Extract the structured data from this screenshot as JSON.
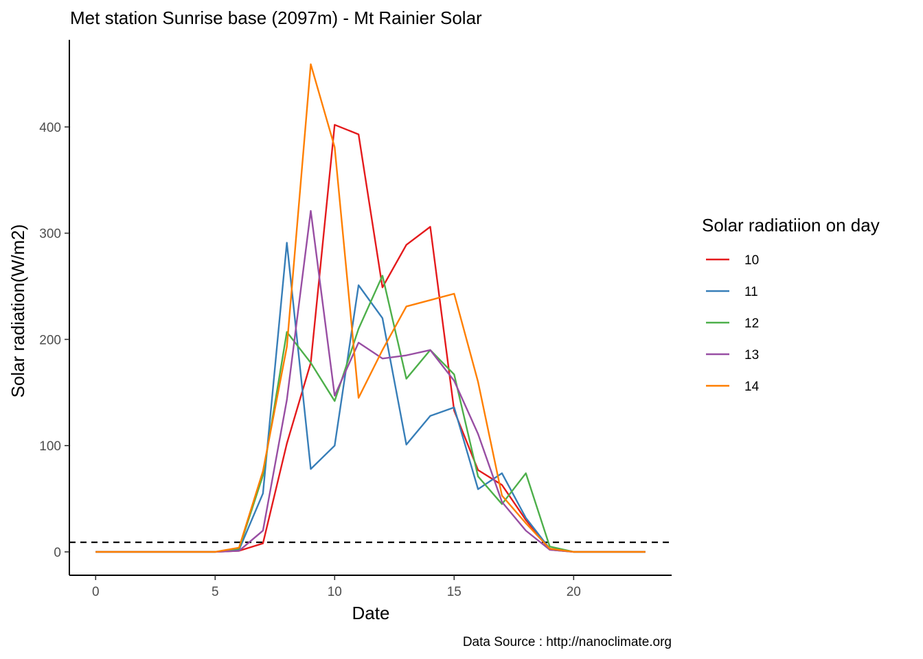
{
  "chart_data": {
    "type": "line",
    "title": "Met station Sunrise base (2097m) -  Mt Rainier  Solar",
    "xlabel": "Date",
    "ylabel": "Solar radiation(W/m2)",
    "caption": "Data Source : http://nanoclimate.org",
    "xlim": [
      -1.1,
      24.1
    ],
    "ylim": [
      -22,
      482
    ],
    "x_ticks": [
      0,
      5,
      10,
      15,
      20
    ],
    "y_ticks": [
      0,
      100,
      200,
      300,
      400
    ],
    "grid": false,
    "reference_line": {
      "y": 9,
      "style": "dashed",
      "color": "#000000"
    },
    "legend": {
      "title": "Solar radiatiion on day",
      "position": "right"
    },
    "x": [
      0,
      1,
      2,
      3,
      4,
      5,
      6,
      7,
      8,
      9,
      10,
      11,
      12,
      13,
      14,
      15,
      16,
      17,
      18,
      19,
      20,
      21,
      22,
      23
    ],
    "series": [
      {
        "name": "10",
        "color": "#e41a1c",
        "values": [
          0,
          0,
          0,
          0,
          0,
          0,
          1,
          8,
          102,
          178,
          402,
          393,
          249,
          289,
          306,
          133,
          77,
          63,
          30,
          2,
          0,
          0,
          0,
          0
        ]
      },
      {
        "name": "11",
        "color": "#377eb8",
        "values": [
          0,
          0,
          0,
          0,
          0,
          0,
          2,
          55,
          291,
          78,
          100,
          251,
          220,
          101,
          128,
          136,
          59,
          74,
          32,
          3,
          0,
          0,
          0,
          0
        ]
      },
      {
        "name": "12",
        "color": "#4daf4a",
        "values": [
          0,
          0,
          0,
          0,
          0,
          0,
          3,
          72,
          207,
          178,
          142,
          210,
          260,
          163,
          190,
          167,
          71,
          45,
          74,
          5,
          0,
          0,
          0,
          0
        ]
      },
      {
        "name": "13",
        "color": "#984ea3",
        "values": [
          0,
          0,
          0,
          0,
          0,
          0,
          1,
          20,
          143,
          321,
          147,
          197,
          182,
          185,
          190,
          161,
          111,
          47,
          20,
          2,
          0,
          0,
          0,
          0
        ]
      },
      {
        "name": "14",
        "color": "#ff7f00",
        "values": [
          0,
          0,
          0,
          0,
          0,
          0,
          4,
          76,
          193,
          459,
          381,
          145,
          190,
          231,
          237,
          243,
          160,
          53,
          27,
          3,
          0,
          0,
          0,
          0
        ]
      }
    ]
  }
}
